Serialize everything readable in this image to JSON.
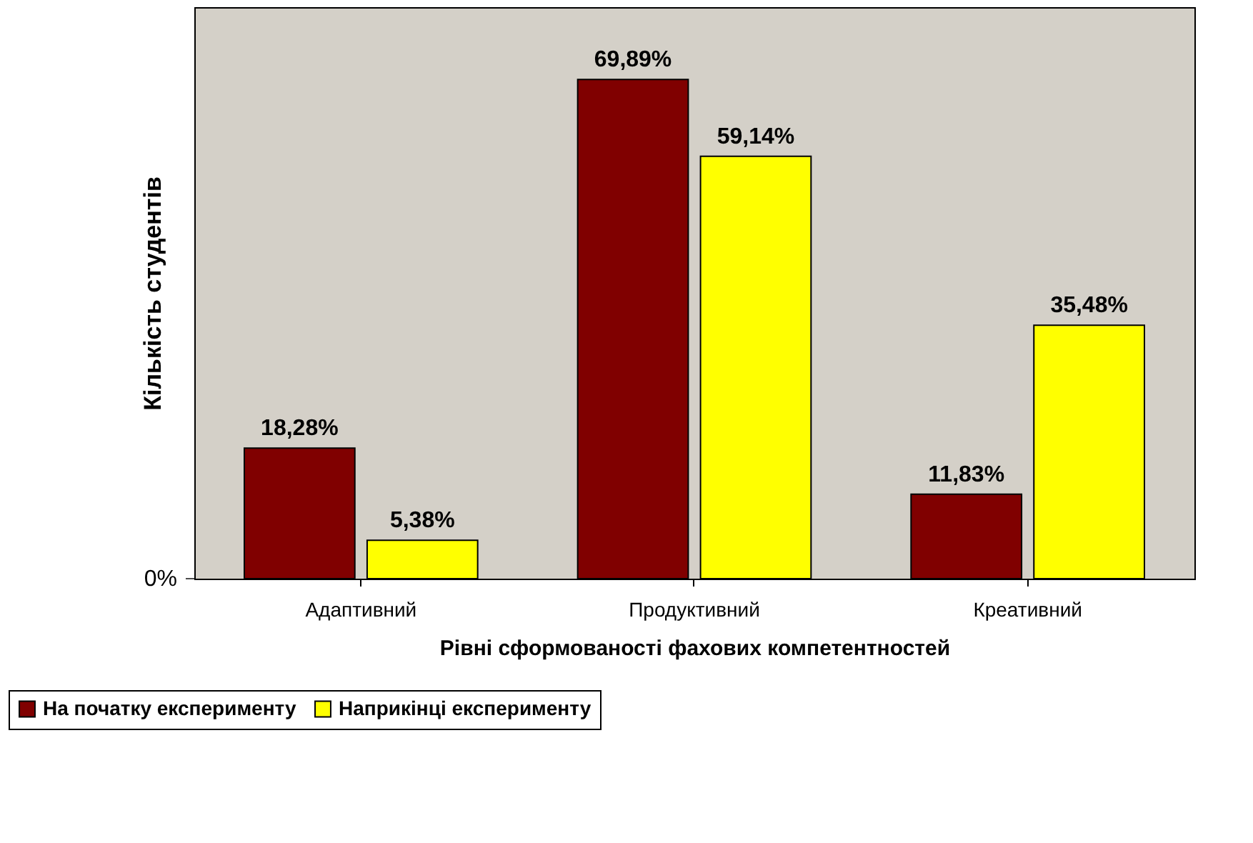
{
  "chart_data": {
    "type": "bar",
    "xlabel": "Рівні сформованості фахових компетентностей",
    "ylabel": "Кількість студентів",
    "categories": [
      "Адаптивний",
      "Продуктивний",
      "Креативний"
    ],
    "series": [
      {
        "name": "На початку експерименту",
        "color": "#800000",
        "values": [
          18.28,
          69.89,
          11.83
        ],
        "value_labels": [
          "18,28%",
          "69,89%",
          "11,83%"
        ]
      },
      {
        "name": "Наприкінці експерименту",
        "color": "#ffff00",
        "values": [
          5.38,
          59.14,
          35.48
        ],
        "value_labels": [
          "5,38%",
          "59,14%",
          "35,48%"
        ]
      }
    ],
    "annotations": [
      "0%"
    ],
    "grid": false,
    "legend": "bottom left"
  }
}
